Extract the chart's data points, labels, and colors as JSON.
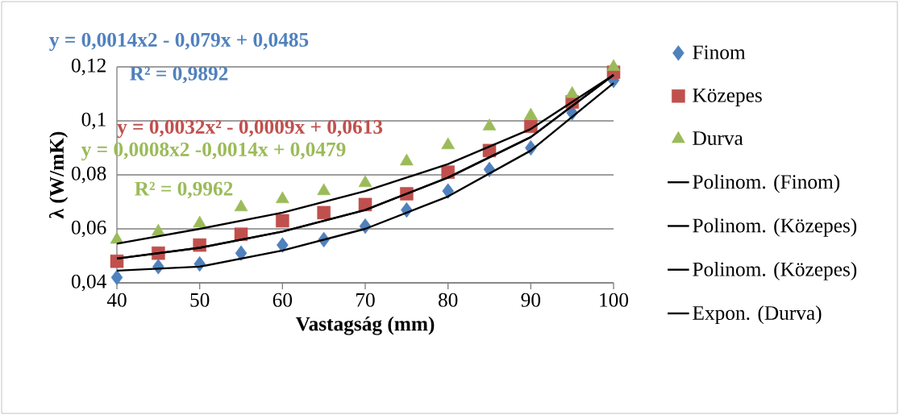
{
  "chart_data": {
    "type": "scatter",
    "xlabel": "Vastagság (mm)",
    "ylabel": "λ (W/mK)",
    "x": [
      40,
      45,
      50,
      55,
      60,
      65,
      70,
      75,
      80,
      85,
      90,
      95,
      100
    ],
    "xlim": [
      40,
      100
    ],
    "xticks": [
      40,
      50,
      60,
      70,
      80,
      90,
      100
    ],
    "ylim": [
      0.04,
      0.12
    ],
    "yticks": [
      {
        "value": 0.04,
        "label": "0,04"
      },
      {
        "value": 0.06,
        "label": "0,06"
      },
      {
        "value": 0.08,
        "label": "0,08"
      },
      {
        "value": 0.1,
        "label": "0,1"
      },
      {
        "value": 0.12,
        "label": "0,12"
      }
    ],
    "grid": "y",
    "legend": "right",
    "series": [
      {
        "name": "Finom",
        "color": "#4f81bd",
        "marker": "diamond",
        "values": [
          0.042,
          0.046,
          0.047,
          0.051,
          0.054,
          0.056,
          0.061,
          0.067,
          0.074,
          0.082,
          0.09,
          0.103,
          0.115
        ]
      },
      {
        "name": "Közepes",
        "color": "#c0504d",
        "marker": "square",
        "values": [
          0.048,
          0.051,
          0.054,
          0.058,
          0.063,
          0.066,
          0.069,
          0.073,
          0.081,
          0.089,
          0.098,
          0.107,
          0.118
        ]
      },
      {
        "name": "Durva",
        "color": "#9bbb59",
        "marker": "triangle",
        "values": [
          0.056,
          0.059,
          0.062,
          0.068,
          0.071,
          0.074,
          0.077,
          0.085,
          0.091,
          0.098,
          0.102,
          0.11,
          0.12
        ]
      },
      {
        "name": "Polinom. (Finom)",
        "type": "line",
        "color": "#000000",
        "x": [
          40,
          50,
          60,
          70,
          80,
          90,
          100
        ],
        "values": [
          0.0445,
          0.046,
          0.052,
          0.06,
          0.072,
          0.089,
          0.114
        ]
      },
      {
        "name": "Polinom. (Közepes)",
        "type": "line",
        "color": "#000000",
        "x": [
          40,
          50,
          60,
          70,
          80,
          90,
          100
        ],
        "values": [
          0.049,
          0.053,
          0.059,
          0.067,
          0.079,
          0.094,
          0.117
        ]
      },
      {
        "name": "Polinom. (Közepes)",
        "type": "line",
        "color": "#000000",
        "x": [
          40,
          50,
          60,
          70,
          80,
          90,
          100
        ],
        "values": [
          0.049,
          0.053,
          0.059,
          0.067,
          0.079,
          0.094,
          0.117
        ]
      },
      {
        "name": "Expon. (Durva)",
        "type": "line",
        "color": "#000000",
        "x": [
          40,
          50,
          60,
          70,
          80,
          90,
          100
        ],
        "values": [
          0.0545,
          0.06,
          0.066,
          0.074,
          0.084,
          0.097,
          0.117
        ]
      }
    ],
    "annotations": [
      "y = 0,0014x2 - 0,079x + 0,0485",
      "R² = 0,9892",
      "y = 0,0032x² - 0,0009x + 0,0613",
      "y = 0,0008x2 -0,0014x + 0,0479",
      "R² = 0,9962"
    ]
  }
}
